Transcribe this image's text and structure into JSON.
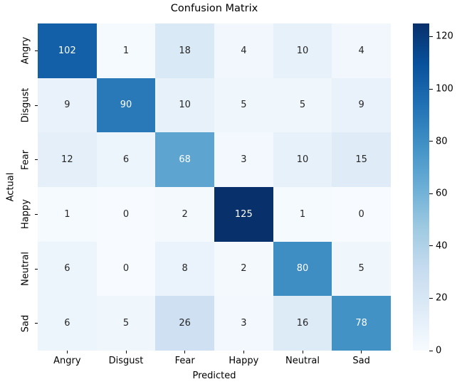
{
  "chart_data": {
    "type": "heatmap",
    "title": "Confusion Matrix",
    "xlabel": "Predicted",
    "ylabel": "Actual",
    "x_categories": [
      "Angry",
      "Disgust",
      "Fear",
      "Happy",
      "Neutral",
      "Sad"
    ],
    "y_categories": [
      "Angry",
      "Disgust",
      "Fear",
      "Happy",
      "Neutral",
      "Sad"
    ],
    "values": [
      [
        102,
        1,
        18,
        4,
        10,
        4
      ],
      [
        9,
        90,
        10,
        5,
        5,
        9
      ],
      [
        12,
        6,
        68,
        3,
        10,
        15
      ],
      [
        1,
        0,
        2,
        125,
        1,
        0
      ],
      [
        6,
        0,
        8,
        2,
        80,
        5
      ],
      [
        6,
        5,
        26,
        3,
        16,
        78
      ]
    ],
    "vmin": 0,
    "vmax": 125,
    "colormap": "Blues",
    "colormap_stops": [
      "#f7fbff",
      "#deebf7",
      "#c6dbef",
      "#9ecae1",
      "#6baed6",
      "#4292c6",
      "#2171b5",
      "#08519c",
      "#08306b"
    ],
    "colorbar_ticks": [
      0,
      20,
      40,
      60,
      80,
      100,
      120
    ],
    "annotation_dark_color": "#262626",
    "annotation_light_color": "#ffffff",
    "legend_position": "right-colorbar",
    "grid": false
  }
}
